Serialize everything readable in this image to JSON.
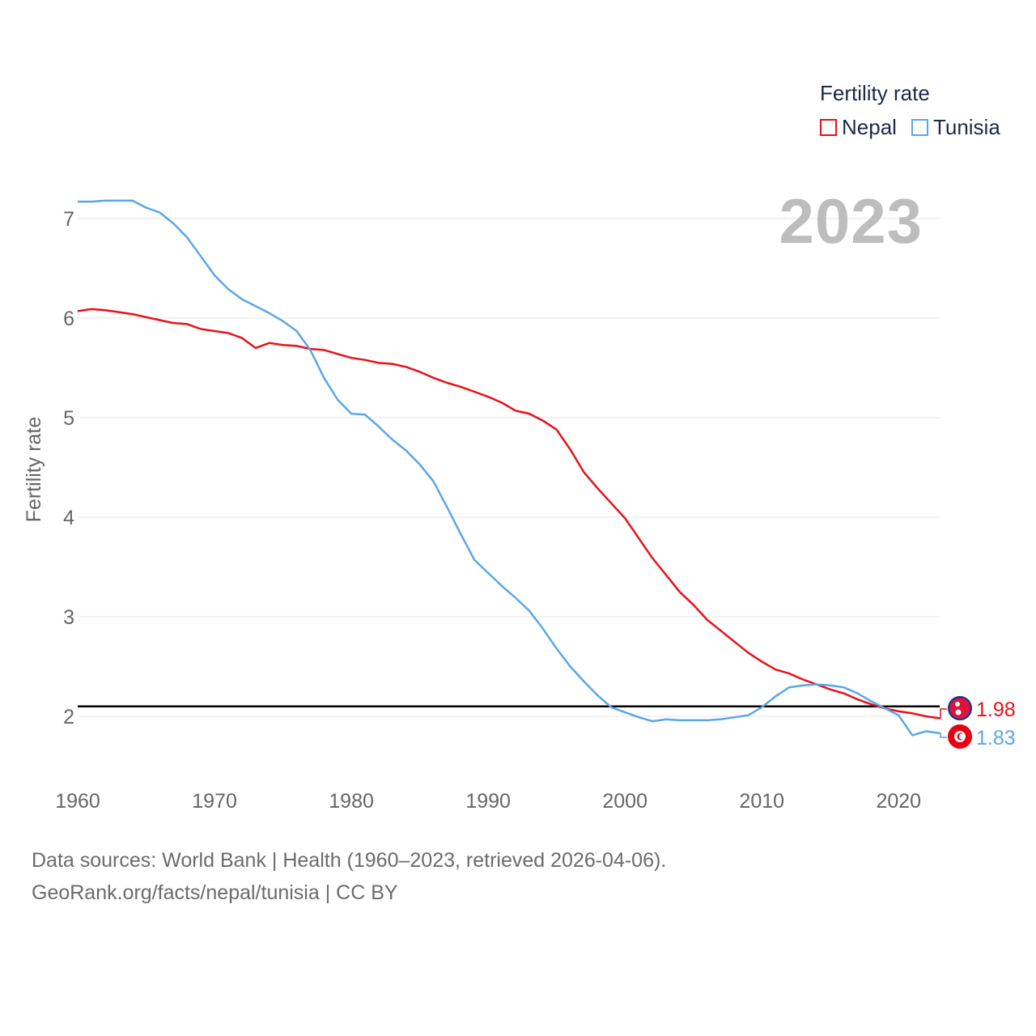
{
  "legend": {
    "title": "Fertility rate",
    "items": [
      {
        "label": "Nepal",
        "color": "#e8101a"
      },
      {
        "label": "Tunisia",
        "color": "#5ba6e8"
      }
    ]
  },
  "year_stamp": "2023",
  "footer": {
    "line1": "Data sources: World Bank | Health (1960–2023, retrieved 2026-04-06).",
    "line2": "GeoRank.org/facts/nepal/tunisia | CC BY"
  },
  "chart_data": {
    "type": "line",
    "title": "",
    "xlabel": "",
    "ylabel": "Fertility rate",
    "xlim": [
      1960,
      2023
    ],
    "ylim": [
      1.5,
      7.4
    ],
    "x_ticks": [
      1960,
      1970,
      1980,
      1990,
      2000,
      2010,
      2020
    ],
    "y_ticks": [
      2,
      3,
      4,
      5,
      6,
      7
    ],
    "grid": true,
    "reference_line": {
      "y": 2.1,
      "color": "#000000"
    },
    "x": [
      1960,
      1961,
      1962,
      1963,
      1964,
      1965,
      1966,
      1967,
      1968,
      1969,
      1970,
      1971,
      1972,
      1973,
      1974,
      1975,
      1976,
      1977,
      1978,
      1979,
      1980,
      1981,
      1982,
      1983,
      1984,
      1985,
      1986,
      1987,
      1988,
      1989,
      1990,
      1991,
      1992,
      1993,
      1994,
      1995,
      1996,
      1997,
      1998,
      1999,
      2000,
      2001,
      2002,
      2003,
      2004,
      2005,
      2006,
      2007,
      2008,
      2009,
      2010,
      2011,
      2012,
      2013,
      2014,
      2015,
      2016,
      2017,
      2018,
      2019,
      2020,
      2021,
      2022,
      2023
    ],
    "series": [
      {
        "name": "Nepal",
        "color": "#e8101a",
        "end_label": "1.98",
        "values": [
          6.07,
          6.09,
          6.08,
          6.06,
          6.04,
          6.01,
          5.98,
          5.95,
          5.94,
          5.89,
          5.87,
          5.85,
          5.8,
          5.7,
          5.75,
          5.73,
          5.72,
          5.69,
          5.68,
          5.64,
          5.6,
          5.58,
          5.55,
          5.54,
          5.51,
          5.46,
          5.4,
          5.35,
          5.31,
          5.26,
          5.21,
          5.15,
          5.07,
          5.04,
          4.97,
          4.88,
          4.68,
          4.45,
          4.29,
          4.14,
          3.99,
          3.79,
          3.59,
          3.42,
          3.25,
          3.12,
          2.97,
          2.86,
          2.75,
          2.64,
          2.55,
          2.47,
          2.43,
          2.37,
          2.32,
          2.27,
          2.23,
          2.17,
          2.12,
          2.08,
          2.05,
          2.03,
          2.0,
          1.98
        ]
      },
      {
        "name": "Tunisia",
        "color": "#5ba6e8",
        "end_label": "1.83",
        "values": [
          7.17,
          7.17,
          7.18,
          7.18,
          7.18,
          7.11,
          7.06,
          6.95,
          6.81,
          6.62,
          6.43,
          6.29,
          6.19,
          6.12,
          6.05,
          5.97,
          5.87,
          5.68,
          5.4,
          5.18,
          5.04,
          5.03,
          4.91,
          4.78,
          4.67,
          4.53,
          4.36,
          4.1,
          3.83,
          3.57,
          3.44,
          3.31,
          3.19,
          3.06,
          2.88,
          2.68,
          2.5,
          2.35,
          2.21,
          2.09,
          2.04,
          1.99,
          1.95,
          1.97,
          1.96,
          1.96,
          1.96,
          1.97,
          1.99,
          2.01,
          2.09,
          2.2,
          2.29,
          2.31,
          2.32,
          2.31,
          2.29,
          2.23,
          2.15,
          2.08,
          2.01,
          1.81,
          1.85,
          1.83
        ]
      }
    ]
  }
}
